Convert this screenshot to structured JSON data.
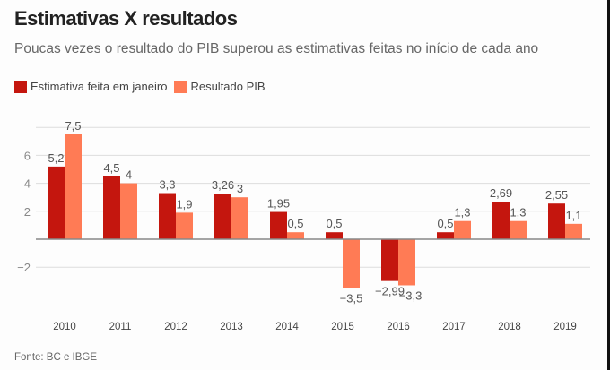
{
  "title": "Estimativas X resultados",
  "subtitle": "Poucas vezes o resultado do PIB superou as estimativas feitas no início de cada ano",
  "source": "Fonte: BC e IBGE",
  "colors": {
    "estimate": "#c4160e",
    "result": "#ff7b55"
  },
  "chart_data": {
    "type": "bar",
    "title": "Estimativas X resultados",
    "subtitle": "Poucas vezes o resultado do PIB superou as estimativas feitas no início de cada ano",
    "xlabel": "",
    "ylabel": "",
    "categories": [
      "2010",
      "2011",
      "2012",
      "2013",
      "2014",
      "2015",
      "2016",
      "2017",
      "2018",
      "2019"
    ],
    "series": [
      {
        "name": "Estimativa feita em janeiro",
        "values": [
          5.2,
          4.5,
          3.3,
          3.26,
          1.95,
          0.5,
          -2.99,
          0.5,
          2.69,
          2.55
        ],
        "labels": [
          "5,2",
          "4,5",
          "3,3",
          "3,26",
          "1,95",
          "0,5",
          "−2,99",
          "0,5",
          "2,69",
          "2,55"
        ]
      },
      {
        "name": "Resultado PIB",
        "values": [
          7.5,
          4,
          1.9,
          3,
          0.5,
          -3.5,
          -3.3,
          1.3,
          1.3,
          1.1
        ],
        "labels": [
          "7,5",
          "4",
          "1,9",
          "3",
          "0,5",
          "−3,5",
          "−3,3",
          "1,3",
          "1,3",
          "1,1"
        ]
      }
    ],
    "yticks": [
      -2,
      2,
      4,
      6
    ],
    "ytick_labels": [
      "−2",
      "2",
      "4",
      "6"
    ],
    "ylim": [
      -5,
      8
    ],
    "grid": true,
    "legend": "top-left"
  }
}
